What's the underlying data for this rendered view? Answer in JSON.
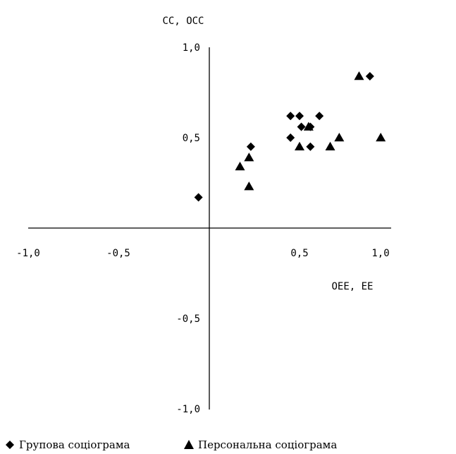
{
  "chart_data": {
    "type": "scatter",
    "xlabel": "OEE, EE",
    "ylabel": "CC, OCC",
    "xlim": [
      -1.0,
      1.0
    ],
    "ylim": [
      -1.0,
      1.0
    ],
    "xticks": [
      "-1,0",
      "-0,5",
      "0,5",
      "1,0"
    ],
    "yticks": [
      "1,0",
      "0,5",
      "-0,5",
      "-1,0"
    ],
    "grid": false,
    "legend_position": "bottom",
    "series": [
      {
        "name": "Групова соціограма",
        "marker": "diamond",
        "color": "#000000",
        "points": [
          [
            -0.06,
            0.17
          ],
          [
            0.23,
            0.45
          ],
          [
            0.45,
            0.62
          ],
          [
            0.5,
            0.62
          ],
          [
            0.61,
            0.62
          ],
          [
            0.51,
            0.56
          ],
          [
            0.56,
            0.56
          ],
          [
            0.45,
            0.5
          ],
          [
            0.56,
            0.45
          ],
          [
            0.89,
            0.84
          ]
        ]
      },
      {
        "name": "Персональна соціограма",
        "marker": "triangle",
        "color": "#000000",
        "points": [
          [
            0.17,
            0.34
          ],
          [
            0.22,
            0.39
          ],
          [
            0.22,
            0.23
          ],
          [
            0.5,
            0.45
          ],
          [
            0.55,
            0.56
          ],
          [
            0.67,
            0.45
          ],
          [
            0.72,
            0.5
          ],
          [
            0.83,
            0.84
          ],
          [
            0.95,
            0.5
          ]
        ]
      }
    ]
  }
}
